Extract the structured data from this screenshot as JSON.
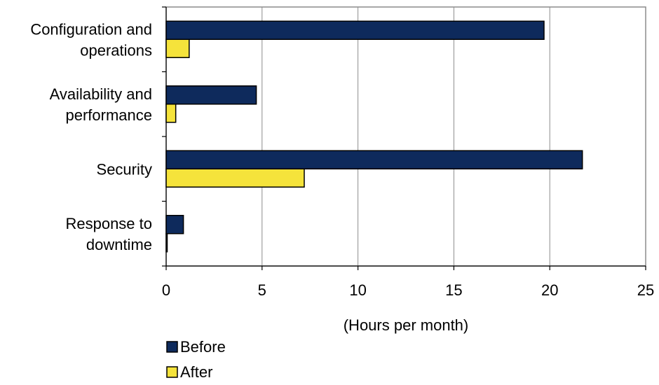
{
  "chart_data": {
    "type": "bar",
    "orientation": "horizontal",
    "categories": [
      [
        "Configuration and",
        "operations"
      ],
      [
        "Availability and",
        "performance"
      ],
      [
        "Security"
      ],
      [
        "Response to",
        "downtime"
      ]
    ],
    "series": [
      {
        "name": "Before",
        "color": "#0e2a5c",
        "values": [
          19.7,
          4.7,
          21.7,
          0.9
        ]
      },
      {
        "name": "After",
        "color": "#f5e33b",
        "values": [
          1.2,
          0.5,
          7.2,
          0.05
        ]
      }
    ],
    "xlabel": "(Hours per month)",
    "xlim": [
      0,
      25
    ],
    "xticks": [
      0,
      5,
      10,
      15,
      20,
      25
    ],
    "grid": "vertical",
    "legend": "bottom-left"
  }
}
